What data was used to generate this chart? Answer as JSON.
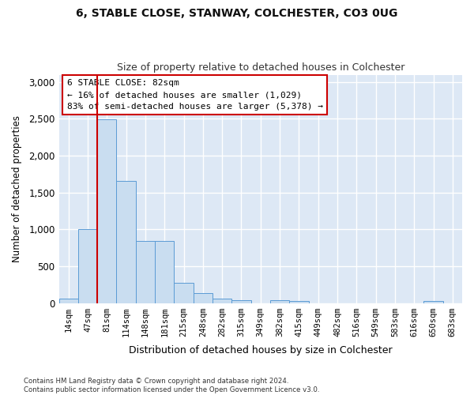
{
  "title_line1": "6, STABLE CLOSE, STANWAY, COLCHESTER, CO3 0UG",
  "title_line2": "Size of property relative to detached houses in Colchester",
  "xlabel": "Distribution of detached houses by size in Colchester",
  "ylabel": "Number of detached properties",
  "categories": [
    "14sqm",
    "47sqm",
    "81sqm",
    "114sqm",
    "148sqm",
    "181sqm",
    "215sqm",
    "248sqm",
    "282sqm",
    "315sqm",
    "349sqm",
    "382sqm",
    "415sqm",
    "449sqm",
    "482sqm",
    "516sqm",
    "549sqm",
    "583sqm",
    "616sqm",
    "650sqm",
    "683sqm"
  ],
  "values": [
    60,
    1000,
    2490,
    1660,
    840,
    840,
    270,
    130,
    55,
    40,
    0,
    40,
    30,
    0,
    0,
    0,
    0,
    0,
    0,
    30,
    0
  ],
  "bar_color": "#c9ddf0",
  "bar_edge_color": "#5b9bd5",
  "vline_x": 2.0,
  "vline_color": "#cc0000",
  "annotation_text": "6 STABLE CLOSE: 82sqm\n← 16% of detached houses are smaller (1,029)\n83% of semi-detached houses are larger (5,378) →",
  "annotation_box_color": "#ffffff",
  "annotation_box_edge": "#cc0000",
  "ylim": [
    0,
    3100
  ],
  "yticks": [
    0,
    500,
    1000,
    1500,
    2000,
    2500,
    3000
  ],
  "footnote": "Contains HM Land Registry data © Crown copyright and database right 2024.\nContains public sector information licensed under the Open Government Licence v3.0.",
  "fig_bg_color": "#ffffff",
  "plot_bg_color": "#dde8f5"
}
